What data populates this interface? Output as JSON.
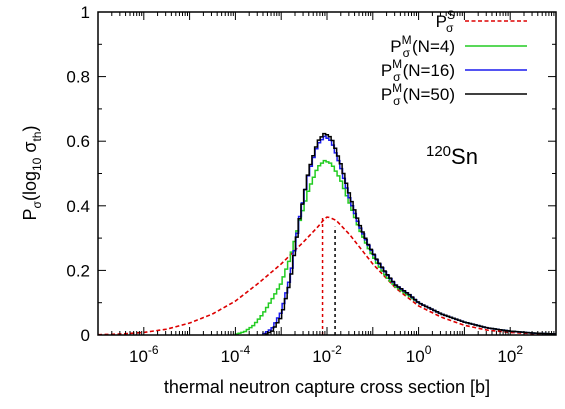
{
  "chart_data": {
    "type": "line",
    "xlabel": "thermal neutron capture cross section [b]",
    "ylabel": {
      "base": "P",
      "sub": "σ",
      "open": "(log",
      "log_sub": "10",
      "var": " σ",
      "var_sub": "th",
      "close": ")"
    },
    "annotation": {
      "sup": "120",
      "text": "Sn"
    },
    "x_scale": "log",
    "xlim": [
      1e-07,
      1000
    ],
    "ylim": [
      0,
      1
    ],
    "x_ticks": [
      {
        "value": 1e-06,
        "base": "10",
        "exp": "-6"
      },
      {
        "value": 0.0001,
        "base": "10",
        "exp": "-4"
      },
      {
        "value": 0.01,
        "base": "10",
        "exp": "-2"
      },
      {
        "value": 1,
        "base": "10",
        "exp": "0"
      },
      {
        "value": 100,
        "base": "10",
        "exp": "2"
      }
    ],
    "y_ticks": [
      {
        "value": 0,
        "label": "0"
      },
      {
        "value": 0.2,
        "label": "0.2"
      },
      {
        "value": 0.4,
        "label": "0.4"
      },
      {
        "value": 0.6,
        "label": "0.6"
      },
      {
        "value": 0.8,
        "label": "0.8"
      },
      {
        "value": 1,
        "label": "1"
      }
    ],
    "grid": false,
    "legend_position": "top-right",
    "series": [
      {
        "name": "P_σ^S",
        "legend_base": "P",
        "legend_sup": "S",
        "legend_sub": "σ",
        "legend_suffix": "",
        "color": "#dd0000",
        "style": "dashed",
        "step": false,
        "points": [
          [
            -7,
            0.001
          ],
          [
            -6.5,
            0.003
          ],
          [
            -6,
            0.008
          ],
          [
            -5.5,
            0.018
          ],
          [
            -5,
            0.037
          ],
          [
            -4.5,
            0.065
          ],
          [
            -4,
            0.105
          ],
          [
            -3.5,
            0.16
          ],
          [
            -3,
            0.22
          ],
          [
            -2.5,
            0.29
          ],
          [
            -2.2,
            0.335
          ],
          [
            -2.05,
            0.36
          ],
          [
            -2,
            0.365
          ],
          [
            -1.95,
            0.364
          ],
          [
            -1.8,
            0.355
          ],
          [
            -1.5,
            0.31
          ],
          [
            -1,
            0.22
          ],
          [
            -0.5,
            0.145
          ],
          [
            0,
            0.09
          ],
          [
            0.5,
            0.055
          ],
          [
            1,
            0.03
          ],
          [
            1.5,
            0.015
          ],
          [
            2,
            0.008
          ],
          [
            2.5,
            0.004
          ],
          [
            3,
            0.002
          ]
        ],
        "marker": {
          "x": 0.008,
          "y": 0.365
        }
      },
      {
        "name": "P_σ^M (N=4)",
        "legend_base": "P",
        "legend_sup": "M",
        "legend_sub": "σ",
        "legend_suffix": "(N=4)",
        "color": "#22cc22",
        "style": "solid",
        "step": true,
        "points": [
          [
            -4,
            0.002
          ],
          [
            -3.8,
            0.01
          ],
          [
            -3.6,
            0.03
          ],
          [
            -3.4,
            0.065
          ],
          [
            -3.2,
            0.11
          ],
          [
            -3,
            0.16
          ],
          [
            -2.8,
            0.24
          ],
          [
            -2.6,
            0.35
          ],
          [
            -2.4,
            0.45
          ],
          [
            -2.2,
            0.52
          ],
          [
            -2.05,
            0.54
          ],
          [
            -1.9,
            0.53
          ],
          [
            -1.7,
            0.48
          ],
          [
            -1.5,
            0.405
          ],
          [
            -1.3,
            0.33
          ],
          [
            -1.1,
            0.27
          ],
          [
            -0.9,
            0.22
          ],
          [
            -0.7,
            0.18
          ],
          [
            -0.5,
            0.15
          ],
          [
            -0.2,
            0.12
          ],
          [
            0,
            0.1
          ],
          [
            0.5,
            0.065
          ],
          [
            1,
            0.04
          ],
          [
            1.5,
            0.022
          ],
          [
            2,
            0.012
          ],
          [
            2.5,
            0.006
          ],
          [
            3,
            0.003
          ]
        ]
      },
      {
        "name": "P_σ^M (N=16)",
        "legend_base": "P",
        "legend_sup": "M",
        "legend_sub": "σ",
        "legend_suffix": "(N=16)",
        "color": "#1a1aee",
        "style": "solid",
        "step": true,
        "points": [
          [
            -3.4,
            0.002
          ],
          [
            -3.2,
            0.02
          ],
          [
            -3,
            0.07
          ],
          [
            -2.8,
            0.18
          ],
          [
            -2.6,
            0.36
          ],
          [
            -2.4,
            0.5
          ],
          [
            -2.2,
            0.59
          ],
          [
            -2.05,
            0.615
          ],
          [
            -1.9,
            0.6
          ],
          [
            -1.7,
            0.52
          ],
          [
            -1.5,
            0.42
          ],
          [
            -1.3,
            0.34
          ],
          [
            -1.1,
            0.28
          ],
          [
            -0.9,
            0.23
          ],
          [
            -0.7,
            0.19
          ],
          [
            -0.5,
            0.155
          ],
          [
            -0.2,
            0.125
          ],
          [
            0,
            0.1
          ],
          [
            0.5,
            0.065
          ],
          [
            1,
            0.04
          ],
          [
            1.5,
            0.022
          ],
          [
            2,
            0.012
          ],
          [
            2.5,
            0.006
          ],
          [
            3,
            0.003
          ]
        ]
      },
      {
        "name": "P_σ^M (N=50)",
        "legend_base": "P",
        "legend_sup": "M",
        "legend_sub": "σ",
        "legend_suffix": "(N=50)",
        "color": "#000000",
        "style": "solid",
        "step": true,
        "points": [
          [
            -3.35,
            0.001
          ],
          [
            -3.2,
            0.012
          ],
          [
            -3,
            0.055
          ],
          [
            -2.8,
            0.17
          ],
          [
            -2.6,
            0.36
          ],
          [
            -2.4,
            0.51
          ],
          [
            -2.2,
            0.6
          ],
          [
            -2.05,
            0.625
          ],
          [
            -1.9,
            0.61
          ],
          [
            -1.7,
            0.53
          ],
          [
            -1.5,
            0.43
          ],
          [
            -1.3,
            0.345
          ],
          [
            -1.1,
            0.28
          ],
          [
            -0.9,
            0.23
          ],
          [
            -0.7,
            0.19
          ],
          [
            -0.5,
            0.155
          ],
          [
            -0.2,
            0.125
          ],
          [
            0,
            0.1
          ],
          [
            0.5,
            0.065
          ],
          [
            1,
            0.04
          ],
          [
            1.5,
            0.022
          ],
          [
            2,
            0.012
          ],
          [
            2.5,
            0.006
          ],
          [
            3,
            0.003
          ]
        ],
        "marker": {
          "x": 0.015,
          "y": 0.335
        }
      }
    ]
  }
}
